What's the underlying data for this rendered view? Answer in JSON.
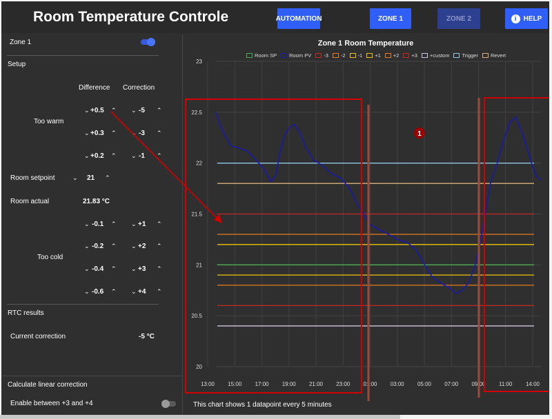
{
  "header": {
    "title": "Room Temperature Controle",
    "buttons": {
      "automation": "AUTOMATION",
      "zone1": "ZONE 1",
      "zone2": "ZONE 2",
      "help": "HELP"
    }
  },
  "sidebar": {
    "zone_label": "Zone 1",
    "zone_toggle_on": true,
    "setup_label": "Setup",
    "col_difference": "Difference",
    "col_correction": "Correction",
    "too_warm_label": "Too warm",
    "too_warm_rows": [
      {
        "difference": "+0.5",
        "correction": "-5"
      },
      {
        "difference": "+0.3",
        "correction": "-3"
      },
      {
        "difference": "+0.2",
        "correction": "-1"
      }
    ],
    "room_setpoint_label": "Room setpoint",
    "room_setpoint_value": "21",
    "room_actual_label": "Room actual",
    "room_actual_value": "21.83 °C",
    "too_cold_label": "Too cold",
    "too_cold_rows": [
      {
        "difference": "-0.1",
        "correction": "+1"
      },
      {
        "difference": "-0.2",
        "correction": "+2"
      },
      {
        "difference": "-0.4",
        "correction": "+3"
      },
      {
        "difference": "-0.6",
        "correction": "+4"
      }
    ],
    "rtc_results_label": "RTC results",
    "current_correction_label": "Current correction",
    "current_correction_value": "-5 °C",
    "calc_linear_label": "Calculate linear correction",
    "enable_between_label": "Enable between +3 and +4",
    "enable_toggle_on": false
  },
  "annotation": {
    "marker_label": "1"
  },
  "footnote": "This chart shows 1 datapoint every 5 minutes",
  "chart_data": {
    "type": "line",
    "title": "Zone 1 Room Temperature",
    "ylim": [
      20,
      23
    ],
    "y_ticks": [
      "20",
      "20.5",
      "21",
      "21.5",
      "22",
      "22.5",
      "23"
    ],
    "x_ticks": [
      "13:00",
      "15:00",
      "17:00",
      "19:00",
      "21:00",
      "23:00",
      "01:00",
      "03:00",
      "05:00",
      "07:00",
      "09:00",
      "11:00",
      "14:00"
    ],
    "grid": true,
    "legend_position": "top",
    "series": [
      {
        "name": "Room SP",
        "color": "#4caf50",
        "values": [
          21.0
        ]
      },
      {
        "name": "Room PV",
        "color": "#1a1aa8",
        "x": [
          13.0,
          13.3,
          13.7,
          14.2,
          14.8,
          15.5,
          16.2,
          16.8,
          17.4,
          17.8,
          18.1,
          18.5,
          18.9,
          19.3,
          19.7,
          20.2,
          20.8,
          21.5,
          22.2,
          23.0,
          23.7,
          24.3,
          24.8,
          25.3,
          26.0,
          26.8,
          27.5,
          28.3,
          29.0,
          29.7,
          30.3,
          31.0,
          31.6,
          32.2,
          32.7,
          33.2,
          33.7,
          34.2,
          34.6,
          35.0,
          35.5,
          36.0,
          36.5,
          37.0,
          37.5,
          38.0,
          38.3,
          38.6,
          39.0
        ],
        "values": [
          22.5,
          22.38,
          22.28,
          22.17,
          22.15,
          22.12,
          22.03,
          21.95,
          21.82,
          21.88,
          22.1,
          22.28,
          22.35,
          22.38,
          22.3,
          22.15,
          22.03,
          21.98,
          21.9,
          21.85,
          21.75,
          21.6,
          21.5,
          21.4,
          21.35,
          21.3,
          21.25,
          21.22,
          21.15,
          21.0,
          20.88,
          20.82,
          20.78,
          20.72,
          20.75,
          20.82,
          20.98,
          21.25,
          21.55,
          21.82,
          22.0,
          22.22,
          22.4,
          22.45,
          22.3,
          22.1,
          21.98,
          21.88,
          21.83
        ]
      },
      {
        "name": "-3",
        "color": "#c62828",
        "values": [
          20.6
        ]
      },
      {
        "name": "-2",
        "color": "#e67e22",
        "values": [
          20.8
        ]
      },
      {
        "name": "-1",
        "color": "#f1c40f",
        "values": [
          20.9
        ]
      },
      {
        "name": "+1",
        "color": "#f1c40f",
        "values": [
          21.2
        ]
      },
      {
        "name": "+2",
        "color": "#e67e22",
        "values": [
          21.3
        ]
      },
      {
        "name": "+3",
        "color": "#c62828",
        "values": [
          21.5
        ]
      },
      {
        "name": "+custom",
        "color": "#d0c8e0",
        "values": [
          20.4
        ]
      },
      {
        "name": "Trigger",
        "color": "#8ecae6",
        "values": [
          22.0
        ]
      },
      {
        "name": "Revert",
        "color": "#d8b27a",
        "values": [
          21.8
        ]
      }
    ]
  }
}
